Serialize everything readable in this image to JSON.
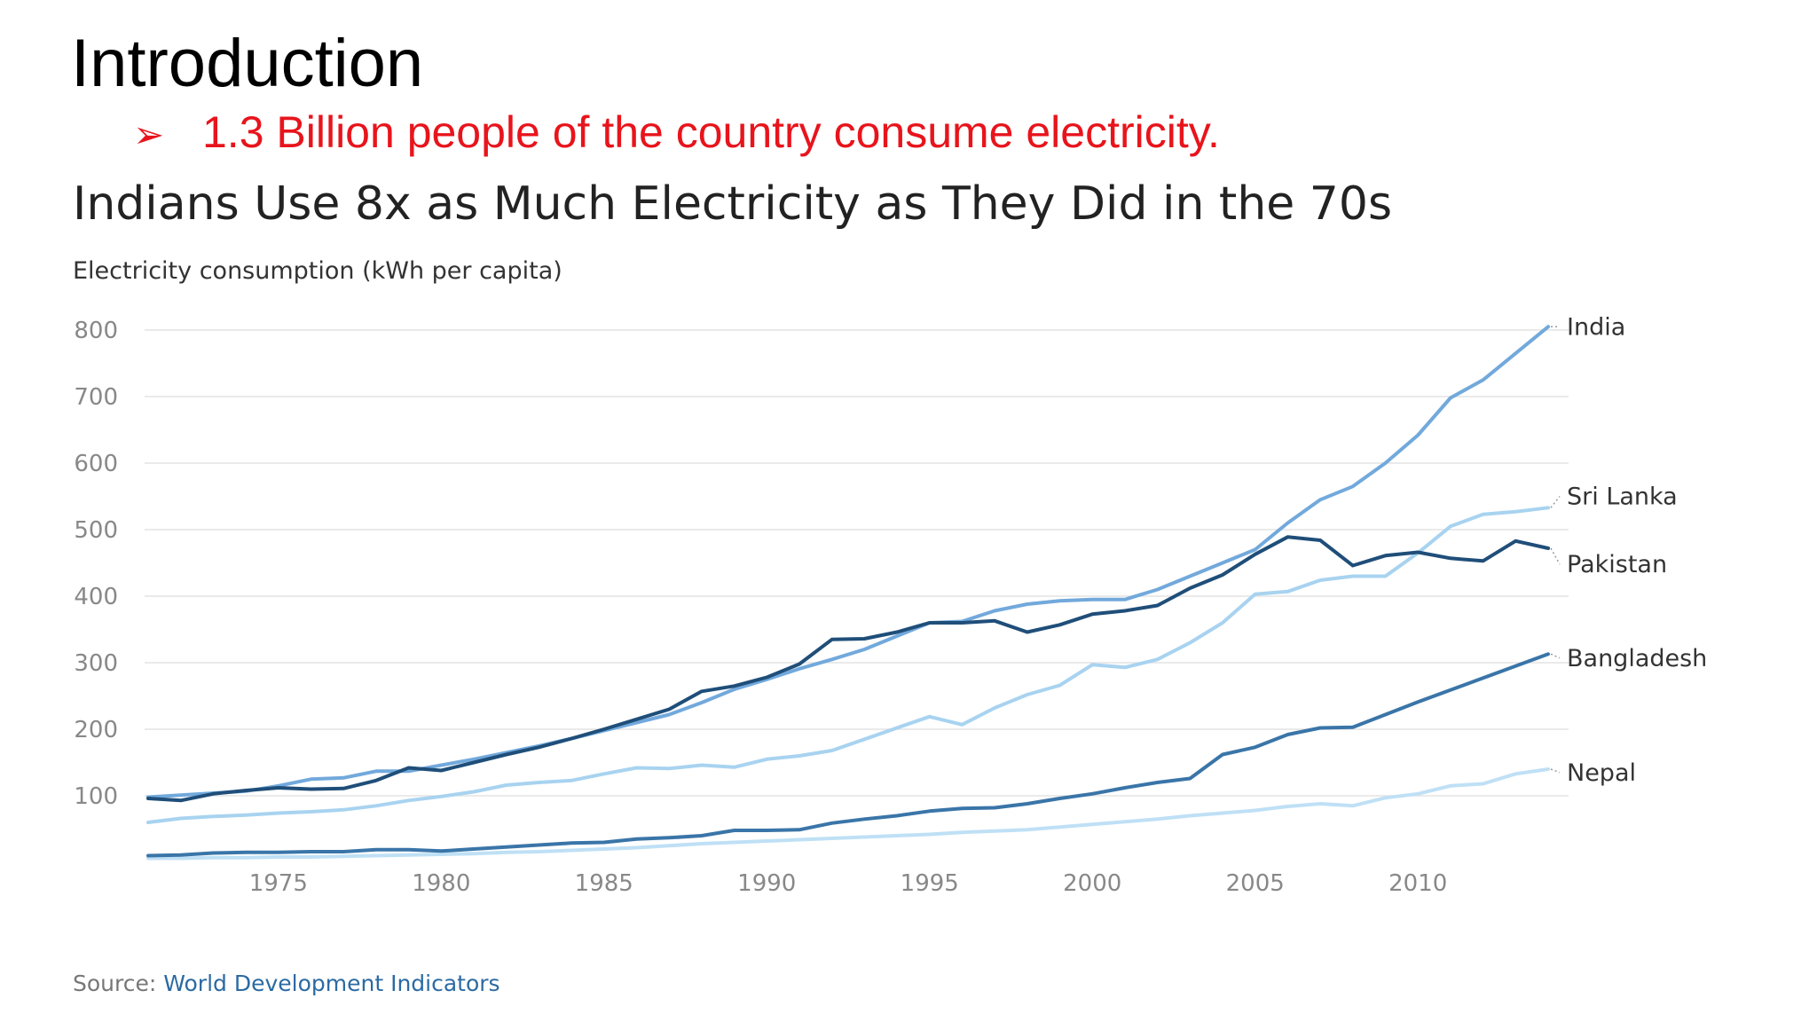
{
  "slide": {
    "title": "Introduction",
    "bullet_marker": "➢",
    "bullet_text": "1.3 Billion people of the country consume electricity."
  },
  "source": {
    "prefix": "Source:",
    "link_text": "World Development Indicators"
  },
  "chart_data": {
    "type": "line",
    "title": "Indians Use 8x as Much Electricity as They Did in the 70s",
    "ylabel": "Electricity consumption (kWh per capita)",
    "xlabel": "",
    "xlim": [
      1971,
      2014
    ],
    "ylim": [
      0,
      800
    ],
    "yticks": [
      100,
      200,
      300,
      400,
      500,
      600,
      700,
      800
    ],
    "ytick_labels": [
      "100",
      "200",
      "300",
      "400",
      "500",
      "600",
      "700",
      "800"
    ],
    "xticks": [
      1975,
      1980,
      1985,
      1990,
      1995,
      2000,
      2005,
      2010
    ],
    "xtick_labels": [
      "1975",
      "1980",
      "1985",
      "1990",
      "1995",
      "2000",
      "2005",
      "2010"
    ],
    "grid": true,
    "legend": "direct labels at line ends",
    "series": [
      {
        "name": "India",
        "color": "#72a9dc",
        "x": [
          1971,
          1972,
          1973,
          1974,
          1975,
          1976,
          1977,
          1978,
          1979,
          1980,
          1981,
          1982,
          1983,
          1984,
          1985,
          1986,
          1987,
          1988,
          1989,
          1990,
          1991,
          1992,
          1993,
          1994,
          1995,
          1996,
          1997,
          1998,
          1999,
          2000,
          2001,
          2002,
          2003,
          2004,
          2005,
          2006,
          2007,
          2008,
          2009,
          2010,
          2011,
          2012,
          2013,
          2014
        ],
        "values": [
          98,
          101,
          104,
          107,
          115,
          125,
          127,
          137,
          137,
          146,
          155,
          165,
          175,
          186,
          198,
          210,
          222,
          240,
          260,
          275,
          291,
          305,
          320,
          340,
          360,
          362,
          378,
          388,
          393,
          395,
          395,
          410,
          430,
          450,
          470,
          510,
          545,
          565,
          600,
          642,
          698,
          725,
          765,
          805
        ]
      },
      {
        "name": "Sri Lanka",
        "color": "#a8d3f0",
        "x": [
          1971,
          1972,
          1973,
          1974,
          1975,
          1976,
          1977,
          1978,
          1979,
          1980,
          1981,
          1982,
          1983,
          1984,
          1985,
          1986,
          1987,
          1988,
          1989,
          1990,
          1991,
          1992,
          1993,
          1994,
          1995,
          1996,
          1997,
          1998,
          1999,
          2000,
          2001,
          2002,
          2003,
          2004,
          2005,
          2006,
          2007,
          2008,
          2009,
          2010,
          2011,
          2012,
          2013,
          2014
        ],
        "values": [
          60,
          66,
          69,
          71,
          74,
          76,
          79,
          85,
          93,
          99,
          106,
          116,
          120,
          123,
          133,
          142,
          141,
          146,
          143,
          155,
          160,
          168,
          185,
          202,
          219,
          207,
          232,
          252,
          266,
          297,
          293,
          305,
          330,
          360,
          403,
          407,
          424,
          430,
          430,
          465,
          505,
          523,
          527,
          533
        ]
      },
      {
        "name": "Pakistan",
        "color": "#1f4e79",
        "x": [
          1971,
          1972,
          1973,
          1974,
          1975,
          1976,
          1977,
          1978,
          1979,
          1980,
          1981,
          1982,
          1983,
          1984,
          1985,
          1986,
          1987,
          1988,
          1989,
          1990,
          1991,
          1992,
          1993,
          1994,
          1995,
          1996,
          1997,
          1998,
          1999,
          2000,
          2001,
          2002,
          2003,
          2004,
          2005,
          2006,
          2007,
          2008,
          2009,
          2010,
          2011,
          2012,
          2013,
          2014
        ],
        "values": [
          96,
          93,
          103,
          108,
          112,
          110,
          111,
          123,
          142,
          138,
          150,
          162,
          173,
          186,
          200,
          215,
          230,
          257,
          265,
          278,
          298,
          335,
          336,
          346,
          360,
          360,
          363,
          346,
          357,
          373,
          378,
          386,
          412,
          432,
          463,
          489,
          484,
          446,
          461,
          466,
          457,
          453,
          483,
          472
        ]
      },
      {
        "name": "Bangladesh",
        "color": "#3a75a8",
        "x": [
          1971,
          1972,
          1973,
          1974,
          1975,
          1976,
          1977,
          1978,
          1979,
          1980,
          1981,
          1982,
          1983,
          1984,
          1985,
          1986,
          1987,
          1988,
          1989,
          1990,
          1991,
          1992,
          1993,
          1994,
          1995,
          1996,
          1997,
          1998,
          1999,
          2000,
          2001,
          2002,
          2003,
          2004,
          2005,
          2006,
          2007,
          2008,
          2009,
          2010,
          2011,
          2012,
          2013,
          2014
        ],
        "values": [
          10,
          11,
          14,
          15,
          15,
          16,
          16,
          19,
          19,
          17,
          20,
          23,
          26,
          29,
          30,
          35,
          37,
          40,
          48,
          48,
          49,
          59,
          65,
          70,
          77,
          81,
          82,
          88,
          96,
          103,
          112,
          120,
          126,
          162,
          173,
          192,
          202,
          203,
          222,
          241,
          259,
          277,
          295,
          313
        ]
      },
      {
        "name": "Nepal",
        "color": "#bfe0f5",
        "x": [
          1971,
          1972,
          1973,
          1974,
          1975,
          1976,
          1977,
          1978,
          1979,
          1980,
          1981,
          1982,
          1983,
          1984,
          1985,
          1986,
          1987,
          1988,
          1989,
          1990,
          1991,
          1992,
          1993,
          1994,
          1995,
          1996,
          1997,
          1998,
          1999,
          2000,
          2001,
          2002,
          2003,
          2004,
          2005,
          2006,
          2007,
          2008,
          2009,
          2010,
          2011,
          2012,
          2013,
          2014
        ],
        "values": [
          6,
          6,
          7,
          7,
          8,
          8,
          9,
          10,
          11,
          12,
          13,
          15,
          16,
          18,
          20,
          22,
          25,
          28,
          30,
          32,
          34,
          36,
          38,
          40,
          42,
          45,
          47,
          49,
          53,
          57,
          61,
          65,
          70,
          74,
          78,
          84,
          88,
          85,
          97,
          103,
          115,
          118,
          133,
          140
        ]
      }
    ]
  }
}
